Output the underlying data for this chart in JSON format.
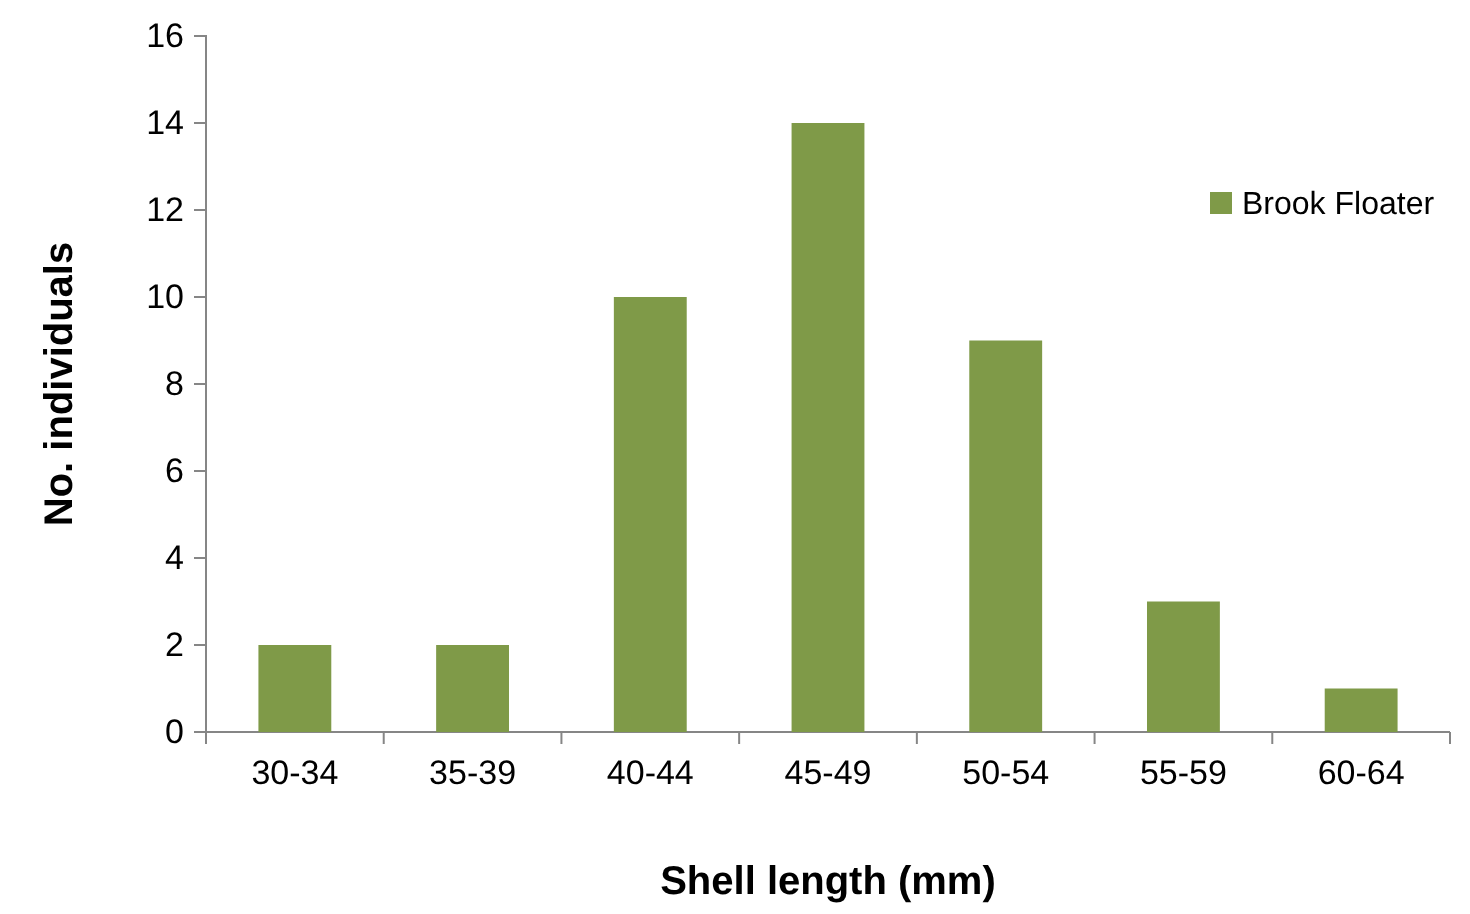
{
  "chart_data": {
    "type": "bar",
    "xlabel": "Shell length (mm)",
    "ylabel": "No. individuals",
    "categories": [
      "30-34",
      "35-39",
      "40-44",
      "45-49",
      "50-54",
      "55-59",
      "60-64"
    ],
    "series": [
      {
        "name": "Brook Floater",
        "color": "#7f9a48",
        "values": [
          2,
          2,
          10,
          14,
          9,
          3,
          1
        ]
      }
    ],
    "ylim": [
      0,
      16
    ],
    "yticks": [
      0,
      2,
      4,
      6,
      8,
      10,
      12,
      14,
      16
    ],
    "grid": false,
    "legend": "right"
  }
}
